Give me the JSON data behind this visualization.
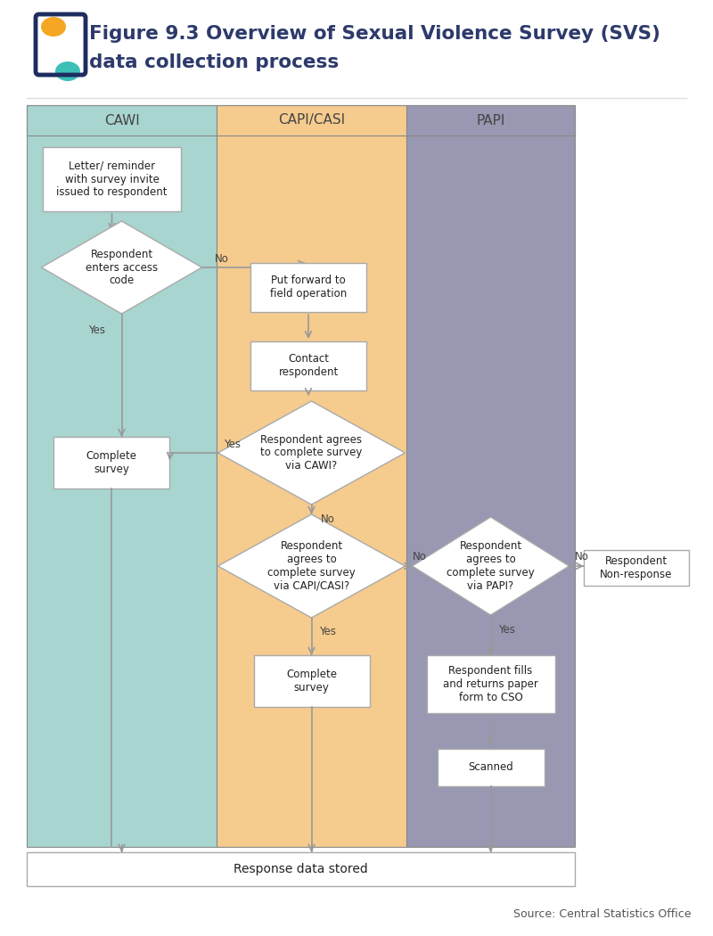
{
  "title_line1": "Figure 9.3 Overview of Sexual Violence Survey (SVS)",
  "title_line2": "data collection process",
  "title_color": "#2d3a6b",
  "col_headers": [
    "CAWI",
    "CAPI/CASI",
    "PAPI"
  ],
  "col_bg_colors": [
    "#a8d5cf",
    "#f5cb8e",
    "#9898b2"
  ],
  "arrow_color": "#999999",
  "source_text": "Source: Central Statistics Office",
  "bottom_box_text": "Response data stored",
  "nonresponse_text": "Respondent\nNon-response"
}
